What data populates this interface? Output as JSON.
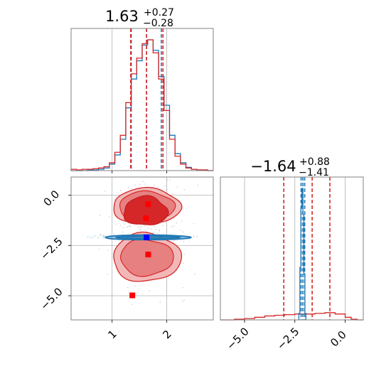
{
  "figure": {
    "param1_title": {
      "value": "1.63",
      "upper": "+0.27",
      "lower": "−0.28"
    },
    "param2_title": {
      "value": "−1.64",
      "upper": "+0.88",
      "lower": "−1.41"
    },
    "colors": {
      "run1": "#1f77b4",
      "run2": "#d62728",
      "grid": "#b0b0b0",
      "axes": "#808080"
    }
  },
  "chart_data": [
    {
      "type": "histogram",
      "panel": "top-left",
      "xlim": [
        0.25,
        2.85
      ],
      "series": [
        {
          "name": "",
          "color": "#1f77b4",
          "bin_edges": [
            0.25,
            0.35,
            0.45,
            0.55,
            0.65,
            0.75,
            0.85,
            0.95,
            1.05,
            1.15,
            1.25,
            1.35,
            1.45,
            1.55,
            1.65,
            1.75,
            1.85,
            1.95,
            2.05,
            2.15,
            2.25,
            2.35,
            2.45,
            2.55,
            2.65,
            2.75,
            2.85
          ],
          "counts": [
            0,
            0,
            0,
            0.5,
            0.5,
            1,
            2,
            5,
            12,
            24,
            48,
            70,
            84,
            96,
            100,
            92,
            72,
            50,
            27,
            13,
            6,
            2.5,
            1,
            0.5,
            0.5,
            0
          ],
          "quantiles": [
            1.35,
            1.63,
            1.9
          ]
        },
        {
          "name": "",
          "color": "#d62728",
          "bin_edges": [
            0.25,
            0.35,
            0.45,
            0.55,
            0.65,
            0.75,
            0.85,
            0.95,
            1.05,
            1.15,
            1.25,
            1.35,
            1.45,
            1.55,
            1.65,
            1.75,
            1.85,
            1.95,
            2.05,
            2.15,
            2.25,
            2.35,
            2.45,
            2.55,
            2.65,
            2.75,
            2.85
          ],
          "counts": [
            1,
            0.5,
            1,
            1,
            1.5,
            2,
            3,
            6,
            14,
            27,
            52,
            74,
            86,
            97,
            100,
            90,
            70,
            46,
            24,
            11,
            5,
            2,
            1,
            0.5,
            0.5,
            0
          ],
          "quantiles": [
            1.34,
            1.63,
            1.93
          ]
        }
      ]
    },
    {
      "type": "histogram",
      "panel": "bottom-right",
      "xlim": [
        -6.2,
        0.9
      ],
      "xticks": [
        "−5.0",
        "−2.5",
        "0.0"
      ],
      "xtick_values": [
        -5.0,
        -2.5,
        0.0
      ],
      "series": [
        {
          "name": "",
          "color": "#1f77b4",
          "bin_edges": [
            -2.3,
            -2.25,
            -2.2,
            -2.15,
            -2.1,
            -2.05,
            -2.0,
            -1.95
          ],
          "counts": [
            5,
            40,
            85,
            100,
            80,
            35,
            5
          ],
          "quantiles": [
            -2.19,
            -2.1,
            -2.01
          ]
        },
        {
          "name": "",
          "color": "#d62728",
          "bin_edges": [
            -6.2,
            -5.5,
            -5.0,
            -4.5,
            -4.0,
            -3.5,
            -3.0,
            -2.5,
            -2.0,
            -1.5,
            -1.0,
            -0.5,
            0.0,
            0.3,
            0.6,
            0.9
          ],
          "counts": [
            0,
            0.5,
            1,
            2,
            3,
            3.5,
            4,
            4.5,
            4.5,
            5,
            5.5,
            4.5,
            2,
            0.5,
            0
          ],
          "quantiles": [
            -3.05,
            -1.64,
            -0.76
          ]
        }
      ]
    },
    {
      "type": "scatter",
      "panel": "bottom-left",
      "xlim": [
        0.25,
        2.85
      ],
      "ylim": [
        -6.2,
        0.9
      ],
      "xticks": [
        "1",
        "2"
      ],
      "xtick_values": [
        1,
        2
      ],
      "yticks": [
        "0.0",
        "−2.5",
        "−5.0"
      ],
      "ytick_values": [
        0.0,
        -2.5,
        -5.0
      ],
      "series": [
        {
          "name": "",
          "color": "#d62728",
          "contours": [
            {
              "center": [
                1.63,
                -0.55
              ],
              "spread": [
                0.62,
                0.88
              ],
              "level": 2
            },
            {
              "center": [
                1.63,
                -3.1
              ],
              "spread": [
                0.62,
                1.2
              ],
              "level": 2
            },
            {
              "center": [
                1.61,
                -0.8
              ],
              "spread": [
                0.4,
                0.72
              ],
              "level": 1
            }
          ],
          "markers": [
            [
              1.66,
              -0.45
            ],
            [
              1.62,
              -1.15
            ],
            [
              1.66,
              -2.95
            ],
            [
              1.37,
              -4.98
            ]
          ]
        },
        {
          "name": "",
          "color": "#1f77b4",
          "contours": [
            {
              "center": [
                1.65,
                -2.1
              ],
              "spread": [
                0.78,
                0.12
              ],
              "level": 2
            }
          ],
          "markers": [
            [
              1.63,
              -2.1
            ]
          ]
        }
      ]
    }
  ]
}
